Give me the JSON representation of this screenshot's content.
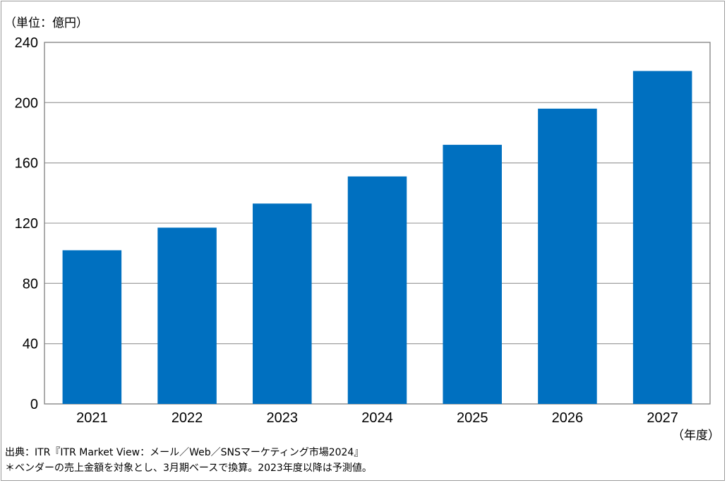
{
  "chart_data": {
    "type": "bar",
    "unit_label": "（単位：億円）",
    "x_unit_label": "（年度）",
    "categories": [
      "2021",
      "2022",
      "2023",
      "2024",
      "2025",
      "2026",
      "2027"
    ],
    "values": [
      102,
      117,
      133,
      151,
      172,
      196,
      221
    ],
    "ylim": [
      0,
      240
    ],
    "yticks": [
      0,
      40,
      80,
      120,
      160,
      200,
      240
    ],
    "grid": true,
    "bar_color": "#0070c0",
    "grid_color": "#a6a6a6"
  },
  "footer": {
    "source": "出典：ITR『ITR Market View：メール／Web／SNSマーケティング市場2024』",
    "note": "＊ベンダーの売上金額を対象とし、3月期ベースで換算。2023年度以降は予測値。"
  }
}
